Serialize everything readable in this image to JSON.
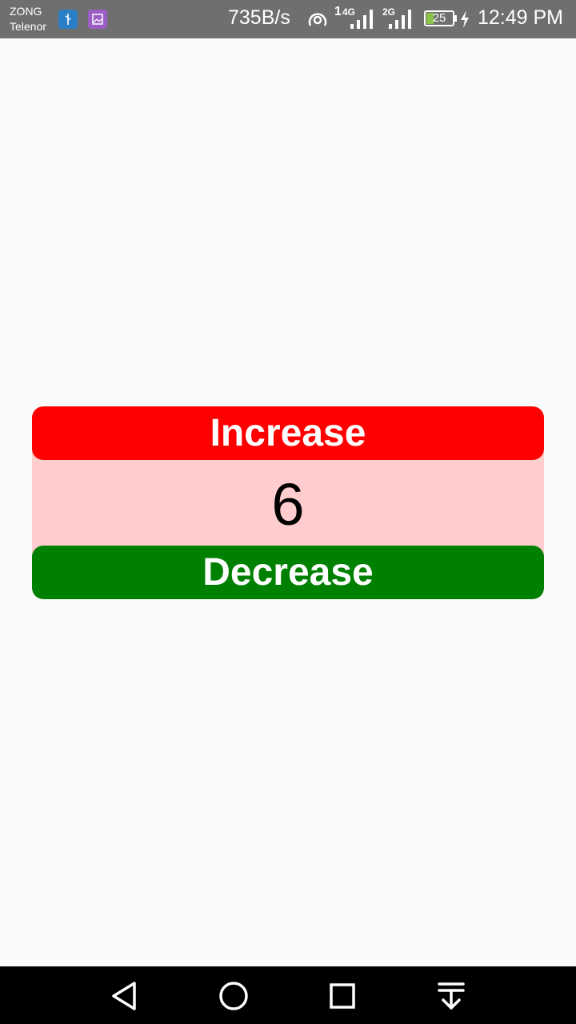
{
  "status_bar": {
    "carrier_1": "ZONG",
    "carrier_2": "Telenor",
    "net_speed": "735B/s",
    "sim1_label": "1",
    "sim1_net": "4G",
    "sim2_net": "2G",
    "battery_level": "25",
    "time": "12:49 PM",
    "icons": [
      "usb-icon",
      "image-icon",
      "hotspot-icon",
      "signal-icon",
      "signal-icon",
      "battery-icon",
      "charging-icon"
    ]
  },
  "counter": {
    "increase_label": "Increase",
    "value": "6",
    "decrease_label": "Decrease"
  },
  "colors": {
    "increase": "#ff0000",
    "decrease": "#008000",
    "card_bg": "#ffcdcd"
  },
  "nav_bar": {
    "icons": [
      "back-icon",
      "home-icon",
      "recents-icon",
      "notifications-pull-icon"
    ]
  }
}
